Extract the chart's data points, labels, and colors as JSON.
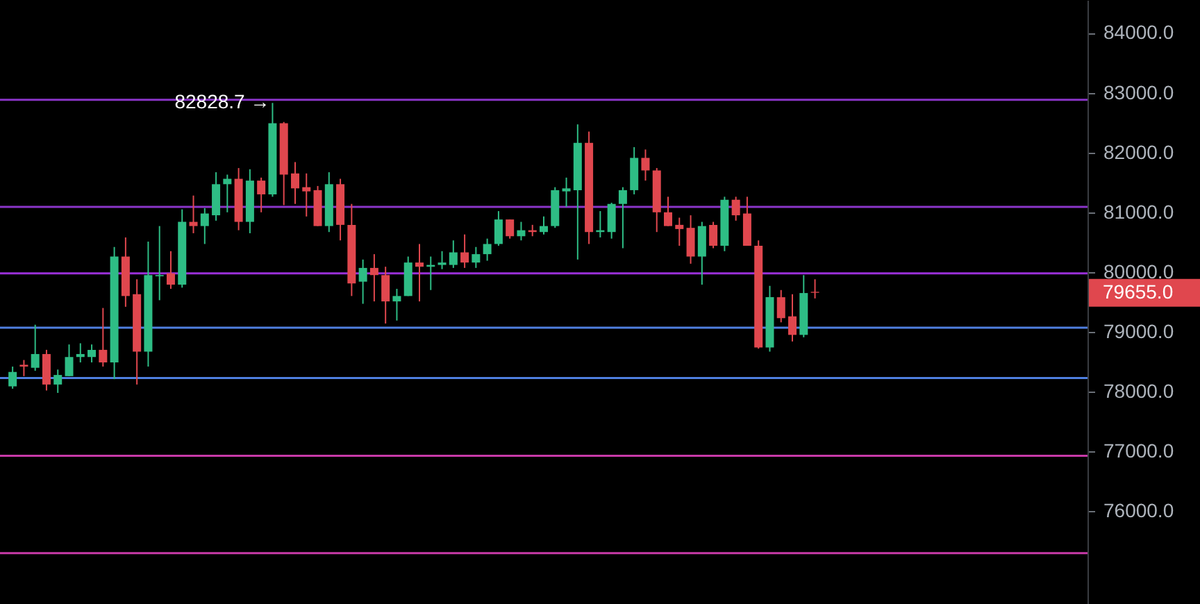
{
  "chart_data": {
    "type": "candlestick",
    "categories": [
      null,
      null,
      null,
      null,
      null,
      null,
      null,
      null,
      null,
      null,
      null,
      null,
      null,
      null,
      null,
      null,
      null,
      null,
      null,
      null,
      null,
      null,
      null,
      null,
      null,
      null,
      null,
      null,
      null,
      null,
      null,
      null,
      null,
      null,
      null,
      null,
      null,
      null,
      null,
      null,
      null,
      null,
      null,
      null,
      null,
      null,
      null,
      null,
      null,
      null,
      null,
      null,
      null,
      null,
      null,
      null,
      null,
      null,
      null,
      null,
      null,
      null,
      null,
      null,
      null,
      null,
      null,
      null,
      null,
      null,
      null,
      null,
      null,
      null,
      null,
      null,
      null,
      null,
      null,
      null,
      null,
      null,
      null,
      null,
      null,
      null,
      null,
      null,
      null,
      null,
      null,
      null,
      null,
      null,
      null
    ],
    "ohlc": [
      [
        78090,
        78420,
        78050,
        78330
      ],
      [
        78450,
        78530,
        78260,
        78420
      ],
      [
        78400,
        79120,
        78350,
        78630
      ],
      [
        78630,
        78700,
        78020,
        78120
      ],
      [
        78120,
        78370,
        77980,
        78280
      ],
      [
        78260,
        78790,
        78260,
        78580
      ],
      [
        78580,
        78810,
        78490,
        78630
      ],
      [
        78580,
        78790,
        78490,
        78700
      ],
      [
        78700,
        79400,
        78420,
        78490
      ],
      [
        78490,
        80420,
        78210,
        80260
      ],
      [
        80260,
        80580,
        79420,
        79600
      ],
      [
        79630,
        79880,
        78120,
        78670
      ],
      [
        78670,
        80510,
        78420,
        79950
      ],
      [
        79930,
        80770,
        79530,
        79950
      ],
      [
        79980,
        80350,
        79720,
        79790
      ],
      [
        79790,
        81050,
        79740,
        80840
      ],
      [
        80840,
        81280,
        80650,
        80770
      ],
      [
        80770,
        81070,
        80470,
        80980
      ],
      [
        80950,
        81670,
        80860,
        81470
      ],
      [
        81470,
        81630,
        81000,
        81560
      ],
      [
        81560,
        81740,
        80700,
        80840
      ],
      [
        80840,
        81720,
        80650,
        81530
      ],
      [
        81530,
        81580,
        81000,
        81300
      ],
      [
        81300,
        82828.7,
        81260,
        82490
      ],
      [
        82490,
        82510,
        81120,
        81630
      ],
      [
        81650,
        81840,
        81140,
        81400
      ],
      [
        81420,
        81650,
        80930,
        81350
      ],
      [
        81370,
        81440,
        80770,
        80770
      ],
      [
        80770,
        81670,
        80670,
        81470
      ],
      [
        81470,
        81560,
        80530,
        80790
      ],
      [
        80790,
        81140,
        79600,
        79810
      ],
      [
        79840,
        80210,
        79470,
        80070
      ],
      [
        80070,
        80300,
        79510,
        79950
      ],
      [
        79950,
        80090,
        79140,
        79510
      ],
      [
        79510,
        79720,
        79190,
        79600
      ],
      [
        79600,
        80260,
        79600,
        80160
      ],
      [
        80160,
        80470,
        79510,
        80090
      ],
      [
        80090,
        80260,
        79700,
        80120
      ],
      [
        80120,
        80350,
        80050,
        80160
      ],
      [
        80120,
        80530,
        80070,
        80330
      ],
      [
        80330,
        80630,
        80070,
        80160
      ],
      [
        80160,
        80420,
        80070,
        80300
      ],
      [
        80300,
        80560,
        80190,
        80470
      ],
      [
        80470,
        81020,
        80440,
        80880
      ],
      [
        80880,
        80880,
        80560,
        80600
      ],
      [
        80600,
        80840,
        80530,
        80700
      ],
      [
        80700,
        80790,
        80600,
        80670
      ],
      [
        80670,
        80930,
        80630,
        80770
      ],
      [
        80770,
        81420,
        80740,
        81370
      ],
      [
        81350,
        81580,
        81090,
        81400
      ],
      [
        81370,
        82470,
        80210,
        82160
      ],
      [
        82160,
        82350,
        80470,
        80670
      ],
      [
        80670,
        81020,
        80580,
        80700
      ],
      [
        80670,
        81160,
        80560,
        81140
      ],
      [
        81140,
        81420,
        80400,
        81370
      ],
      [
        81370,
        82090,
        81300,
        81910
      ],
      [
        81910,
        82050,
        81530,
        81700
      ],
      [
        81700,
        81740,
        80670,
        81000
      ],
      [
        81000,
        81260,
        80770,
        80770
      ],
      [
        80790,
        80910,
        80440,
        80720
      ],
      [
        80740,
        80950,
        80140,
        80260
      ],
      [
        80260,
        80840,
        79790,
        80770
      ],
      [
        80790,
        80840,
        80400,
        80440
      ],
      [
        80440,
        81260,
        80350,
        81210
      ],
      [
        81210,
        81260,
        80860,
        80950
      ],
      [
        80980,
        81260,
        80440,
        80440
      ],
      [
        80440,
        80530,
        78720,
        78740
      ],
      [
        78740,
        79770,
        78670,
        79580
      ],
      [
        79580,
        79700,
        79160,
        79230
      ],
      [
        79260,
        79630,
        78840,
        78950
      ],
      [
        78950,
        79950,
        78910,
        79650
      ],
      [
        79670,
        79880,
        79560,
        79655
      ],
      null,
      null,
      null,
      null,
      null,
      null,
      null,
      null,
      null,
      null,
      null,
      null,
      null,
      null,
      null,
      null,
      null,
      null,
      null,
      null,
      null,
      null,
      null
    ],
    "ylim": [
      74450,
      84550
    ],
    "yticks": [
      {
        "value": 76000,
        "label": "76000.0"
      },
      {
        "value": 77000,
        "label": "77000.0"
      },
      {
        "value": 78000,
        "label": "78000.0"
      },
      {
        "value": 79000,
        "label": "79000.0"
      },
      {
        "value": 80000,
        "label": "80000.0"
      },
      {
        "value": 81000,
        "label": "81000.0"
      },
      {
        "value": 82000,
        "label": "82000.0"
      },
      {
        "value": 83000,
        "label": "83000.0"
      },
      {
        "value": 84000,
        "label": "84000.0"
      }
    ],
    "tick_labels": "y",
    "grid": false,
    "ref_lines": [
      {
        "axis": "y",
        "value": 82880,
        "color": "#8a35c8"
      },
      {
        "axis": "y",
        "value": 81090,
        "color": "#8a35c8"
      },
      {
        "axis": "y",
        "value": 79980,
        "color": "#9b30d9"
      },
      {
        "axis": "y",
        "value": 79070,
        "color": "#4f7fe0"
      },
      {
        "axis": "y",
        "value": 78230,
        "color": "#4f7fe0"
      },
      {
        "axis": "y",
        "value": 76930,
        "color": "#c83aa8"
      },
      {
        "axis": "y",
        "value": 75300,
        "color": "#c83aa8"
      }
    ],
    "annotations": [
      {
        "text": "82828.7 →",
        "y": 82828.7
      },
      "79655.0"
    ]
  }
}
